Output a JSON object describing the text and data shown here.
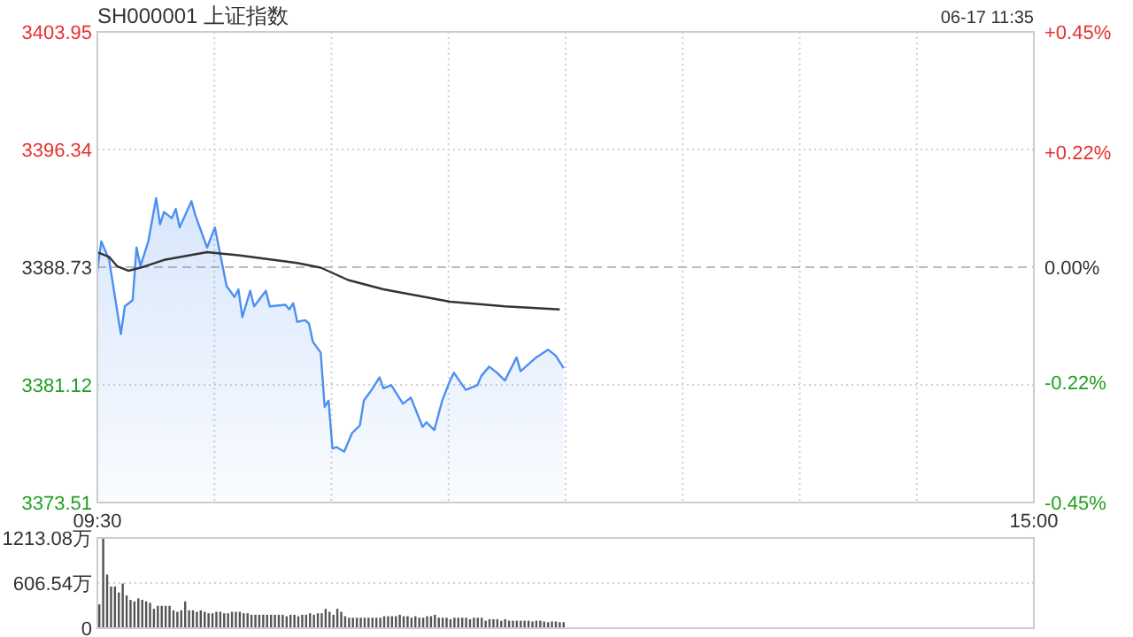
{
  "chart_data": [
    {
      "type": "area",
      "title": "SH000001 上证指数",
      "subtitle": "06-17 11:35",
      "categories": [
        "09:30",
        null,
        null,
        null,
        null,
        null,
        null,
        null,
        null,
        null,
        null,
        null,
        null,
        null,
        null,
        null,
        null,
        null,
        null,
        null,
        null,
        null,
        null,
        null,
        null,
        null,
        null,
        null,
        null,
        null,
        null,
        null,
        null,
        null,
        null,
        null,
        null,
        null,
        null,
        null,
        null,
        null,
        null,
        null,
        null,
        null,
        null,
        null,
        null,
        null,
        null,
        null,
        null,
        null,
        null,
        null,
        null,
        null,
        null,
        null,
        null,
        null,
        null,
        null,
        null,
        null,
        null,
        null,
        null,
        null,
        null,
        null,
        null,
        null,
        null,
        null,
        null,
        null,
        null,
        null,
        null,
        null,
        null,
        null,
        null,
        null,
        null,
        null,
        null,
        null,
        null,
        null,
        null,
        null,
        null,
        null,
        null,
        null,
        null,
        null,
        null,
        null,
        null,
        null,
        null,
        null,
        null,
        null,
        null,
        null,
        null,
        null,
        null,
        null,
        null,
        null,
        null,
        null,
        null,
        null,
        null,
        null,
        null,
        null,
        null,
        null,
        null,
        null,
        null,
        null,
        null,
        null,
        null,
        null,
        null,
        null,
        null,
        null,
        null,
        null,
        null,
        null,
        null,
        null,
        null,
        null,
        null,
        null,
        null,
        null,
        null,
        null,
        null,
        null,
        null,
        null,
        null,
        null,
        null,
        null,
        null,
        null,
        null,
        null,
        null,
        null,
        null,
        null,
        null,
        null,
        null,
        null,
        null,
        null,
        null,
        null,
        null,
        null,
        null,
        null,
        null,
        null,
        null,
        null,
        null,
        null,
        null,
        null,
        null,
        null,
        null,
        null,
        null,
        null,
        null,
        null,
        null,
        null,
        null,
        null,
        null,
        null,
        null,
        null,
        null,
        null,
        null,
        null,
        null,
        null,
        null,
        null,
        null,
        null,
        null,
        null,
        null,
        null,
        null,
        null,
        null,
        null,
        null,
        null,
        null,
        null,
        null,
        null,
        null,
        null,
        null,
        null,
        null,
        null,
        null,
        null,
        null,
        null,
        null,
        "15:00"
      ],
      "ylim": [
        3373.51,
        3403.95
      ],
      "yticks": [
        3373.51,
        3381.12,
        3388.73,
        3396.34,
        3403.95
      ],
      "y2lim": [
        -0.45,
        0.45
      ],
      "y2ticks": [
        {
          "value": -0.45,
          "label": "-0.45%"
        },
        {
          "value": -0.22,
          "label": "-0.22%"
        },
        {
          "value": 0,
          "label": "0.00%"
        },
        {
          "value": 0.22,
          "label": "+0.22%"
        },
        {
          "value": 0.45,
          "label": "+0.45%"
        }
      ],
      "grid": true,
      "marker": "none",
      "line_style": "solid",
      "ref_lines": [
        {
          "axis": "y2",
          "value": 0,
          "label": null,
          "color": "#bbbbbb",
          "line_style": "dashed"
        }
      ],
      "series": [
        {
          "color": "#4d8ff0",
          "values": [
            3388.5,
            3390.4,
            null,
            3389.2,
            null,
            null,
            3384.4,
            3386.2,
            null,
            3386.6,
            3390.0,
            3388.8,
            null,
            3390.4,
            null,
            3393.2,
            3391.5,
            3392.3,
            null,
            3391.9,
            3392.5,
            3391.3,
            null,
            null,
            3393.0,
            3392.1,
            null,
            null,
            3390.0,
            null,
            3391.3,
            3390.0,
            null,
            3387.5,
            null,
            3386.8,
            3387.3,
            3385.5,
            null,
            3387.2,
            3386.2,
            null,
            null,
            3387.2,
            3386.2,
            null,
            null,
            null,
            3386.3,
            3386.0,
            3386.4,
            3385.2,
            null,
            3385.3,
            3385.1,
            3383.9,
            null,
            3383.2,
            3379.7,
            3380.1,
            3377.0,
            3377.1,
            null,
            3376.8,
            null,
            3378.0,
            null,
            3378.5,
            3380.1,
            null,
            3380.8,
            null,
            3381.6,
            3380.9,
            null,
            3381.1,
            null,
            null,
            3379.9,
            null,
            3380.3,
            null,
            null,
            3378.4,
            3378.7,
            null,
            3378.2,
            null,
            3380.1,
            null,
            3381.4,
            3381.9,
            null,
            null,
            3380.8,
            null,
            null,
            3381.1,
            3381.7,
            null,
            3382.3,
            null,
            3381.9,
            null,
            3381.4,
            null,
            null,
            3382.9,
            3382.0,
            null,
            null,
            null,
            3382.9,
            null,
            null,
            3383.4,
            null,
            3383.0,
            null,
            3382.2,
            null,
            null,
            null,
            null,
            null,
            null,
            null,
            null,
            null,
            null,
            null,
            null,
            null,
            null,
            null,
            null,
            null,
            null,
            null,
            null,
            null,
            null,
            null,
            null,
            null,
            null,
            null,
            null,
            null,
            null,
            null,
            null,
            null,
            null,
            null,
            null,
            null,
            null,
            null,
            null,
            null,
            null,
            null,
            null,
            null,
            null,
            null,
            null,
            null,
            null,
            null,
            null,
            null,
            null,
            null,
            null,
            null,
            null,
            null,
            null,
            null,
            null,
            null,
            null,
            null,
            null,
            null,
            null,
            null,
            null,
            null,
            null,
            null,
            null,
            null,
            null,
            null,
            null,
            null,
            null,
            null,
            null,
            null,
            null,
            null,
            null,
            null,
            null,
            null,
            null,
            null,
            null,
            null,
            null,
            null,
            null,
            null,
            null,
            null,
            null,
            null,
            null,
            null,
            null,
            null,
            null,
            null,
            null,
            null,
            null,
            null,
            null,
            null,
            null,
            null,
            null,
            null,
            null,
            null,
            null
          ]
        },
        {
          "type": "line",
          "color": "#333333",
          "values": [
            3389.7,
            null,
            null,
            3389.4,
            null,
            3388.8,
            null,
            null,
            3388.5,
            null,
            null,
            3388.7,
            null,
            null,
            null,
            null,
            null,
            3389.2,
            null,
            null,
            null,
            null,
            null,
            null,
            null,
            null,
            null,
            null,
            3389.7,
            null,
            null,
            null,
            null,
            null,
            null,
            null,
            3389.5,
            null,
            null,
            null,
            null,
            null,
            null,
            null,
            null,
            null,
            null,
            null,
            null,
            null,
            null,
            3389.0,
            null,
            null,
            null,
            null,
            null,
            3388.7,
            null,
            null,
            null,
            null,
            null,
            null,
            3387.9,
            null,
            null,
            null,
            null,
            null,
            null,
            null,
            null,
            3387.3,
            null,
            null,
            null,
            null,
            null,
            null,
            null,
            null,
            null,
            null,
            null,
            null,
            null,
            null,
            null,
            null,
            3386.5,
            null,
            null,
            null,
            null,
            null,
            null,
            null,
            null,
            null,
            null,
            null,
            null,
            null,
            3386.2,
            null,
            null,
            null,
            null,
            null,
            null,
            null,
            null,
            null,
            null,
            null,
            null,
            null,
            3386.0,
            null,
            null,
            null,
            null,
            null,
            null,
            null,
            null,
            null,
            null,
            null,
            null,
            null,
            null,
            null,
            null,
            null,
            null,
            null,
            null,
            null,
            null,
            null,
            null,
            null,
            null,
            null,
            null,
            null,
            null,
            null,
            null,
            null,
            null,
            null,
            null,
            null,
            null,
            null,
            null,
            null,
            null,
            null,
            null,
            null,
            null,
            null,
            null,
            null,
            null,
            null,
            null,
            null,
            null,
            null,
            null,
            null,
            null,
            null,
            null,
            null,
            null,
            null,
            null,
            null,
            null,
            null,
            null,
            null,
            null,
            null,
            null,
            null,
            null,
            null,
            null,
            null,
            null,
            null,
            null,
            null,
            null,
            null,
            null,
            null,
            null,
            null,
            null,
            null,
            null,
            null,
            null,
            null,
            null,
            null,
            null,
            null,
            null,
            null,
            null,
            null,
            null,
            null,
            null,
            null,
            null,
            null,
            null,
            null,
            null,
            null,
            null,
            null,
            null,
            null,
            null,
            null,
            null,
            null,
            null,
            null
          ]
        }
      ]
    },
    {
      "type": "bar",
      "color": "#555555",
      "ylim": [
        0,
        1213.08
      ],
      "yticks": [
        0,
        {
          "value": 606.54,
          "label": "606.54万"
        },
        {
          "value": 1213.08,
          "label": "1213.08万"
        }
      ],
      "grid": "y",
      "tick_labels": "y",
      "categories": [
        null,
        null,
        null,
        null,
        null,
        null,
        null,
        null,
        null,
        null,
        null,
        null,
        null,
        null,
        null,
        null,
        null,
        null,
        null,
        null,
        null,
        null,
        null,
        null,
        null,
        null,
        null,
        null,
        null,
        null,
        null,
        null,
        null,
        null,
        null,
        null,
        null,
        null,
        null,
        null,
        null,
        null,
        null,
        null,
        null,
        null,
        null,
        null,
        null,
        null,
        null,
        null,
        null,
        null,
        null,
        null,
        null,
        null,
        null,
        null,
        null,
        null,
        null,
        null,
        null,
        null,
        null,
        null,
        null,
        null,
        null,
        null,
        null,
        null,
        null,
        null,
        null,
        null,
        null,
        null,
        null,
        null,
        null,
        null,
        null,
        null,
        null,
        null,
        null,
        null,
        null,
        null,
        null,
        null,
        null,
        null,
        null,
        null,
        null,
        null,
        null,
        null,
        null,
        null,
        null,
        null,
        null,
        null,
        null,
        null,
        null,
        null,
        null,
        null,
        null,
        null,
        null,
        null,
        null,
        null,
        null,
        null,
        null,
        null,
        null,
        null,
        null,
        null,
        null,
        null,
        null,
        null,
        null,
        null,
        null,
        null,
        null,
        null,
        null,
        null,
        null,
        null,
        null,
        null,
        null,
        null,
        null,
        null,
        null,
        null,
        null,
        null,
        null,
        null,
        null,
        null,
        null,
        null,
        null,
        null,
        null,
        null,
        null,
        null,
        null,
        null,
        null,
        null,
        null,
        null,
        null,
        null,
        null,
        null,
        null,
        null,
        null,
        null,
        null,
        null,
        null,
        null,
        null,
        null,
        null,
        null,
        null,
        null,
        null,
        null,
        null,
        null,
        null,
        null,
        null,
        null,
        null,
        null,
        null,
        null,
        null,
        null,
        null,
        null,
        null,
        null,
        null,
        null,
        null,
        null,
        null,
        null,
        null,
        null,
        null,
        null,
        null,
        null,
        null,
        null,
        null,
        null,
        null,
        null,
        null,
        null,
        null,
        null,
        null,
        null,
        null,
        null,
        null,
        null,
        null,
        null,
        null,
        null,
        null,
        null
      ],
      "values": [
        320,
        1210,
        720,
        560,
        560,
        480,
        600,
        440,
        380,
        360,
        400,
        380,
        360,
        340,
        260,
        300,
        300,
        300,
        300,
        240,
        220,
        240,
        360,
        240,
        240,
        220,
        240,
        220,
        200,
        200,
        220,
        220,
        200,
        200,
        220,
        220,
        220,
        200,
        200,
        180,
        180,
        180,
        180,
        180,
        180,
        180,
        180,
        180,
        160,
        180,
        180,
        160,
        180,
        180,
        200,
        180,
        200,
        200,
        260,
        220,
        180,
        260,
        220,
        160,
        140,
        140,
        140,
        140,
        140,
        140,
        140,
        140,
        140,
        160,
        160,
        160,
        160,
        180,
        160,
        160,
        140,
        160,
        140,
        140,
        160,
        160,
        180,
        140,
        140,
        140,
        120,
        140,
        140,
        140,
        140,
        120,
        140,
        140,
        140,
        100,
        120,
        120,
        120,
        100,
        120,
        100,
        100,
        100,
        100,
        100,
        100,
        90,
        100,
        100,
        90,
        80,
        90,
        90,
        80,
        80,
        null,
        null,
        null,
        null,
        null,
        null,
        null,
        null,
        null,
        null,
        null,
        null,
        null,
        null,
        null,
        null,
        null,
        null,
        null,
        null,
        null,
        null,
        null,
        null,
        null,
        null,
        null,
        null,
        null,
        null,
        null,
        null,
        null,
        null,
        null,
        null,
        null,
        null,
        null,
        null,
        null,
        null,
        null,
        null,
        null,
        null,
        null,
        null,
        null,
        null,
        null,
        null,
        null,
        null,
        null,
        null,
        null,
        null,
        null,
        null,
        null,
        null,
        null,
        null,
        null,
        null,
        null,
        null,
        null,
        null,
        null,
        null,
        null,
        null,
        null,
        null,
        null,
        null,
        null,
        null,
        null,
        null,
        null,
        null,
        null,
        null,
        null,
        null,
        null,
        null,
        null,
        null,
        null,
        null,
        null,
        null,
        null,
        null,
        null,
        null,
        null,
        null,
        null,
        null,
        null,
        null,
        null,
        null,
        null,
        null,
        null,
        null,
        null,
        null,
        null,
        null,
        null,
        null,
        null,
        null
      ]
    }
  ]
}
